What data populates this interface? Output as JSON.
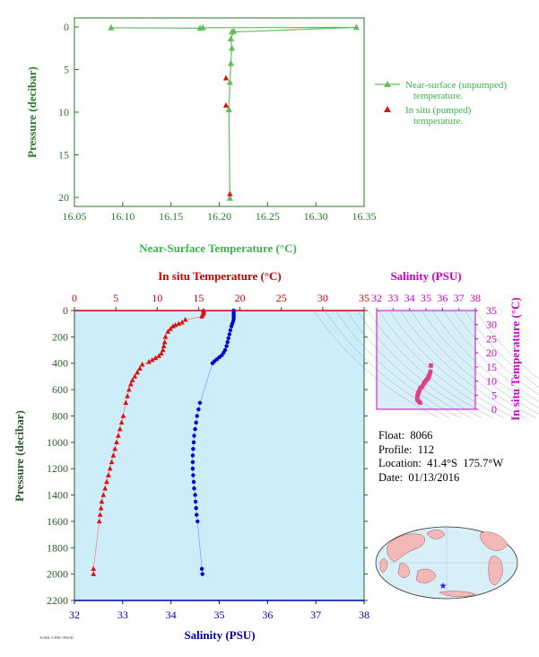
{
  "chart_data": [
    {
      "type": "line",
      "xlabel": "Near-Surface Temperature (°C)",
      "ylabel": "Pressure (decibar)",
      "xlim": [
        16.05,
        16.35
      ],
      "ylim": [
        0,
        22
      ],
      "y_inverted": true,
      "xticks": [
        "16.05",
        "16.10",
        "16.15",
        "16.20",
        "16.25",
        "16.30",
        "16.35"
      ],
      "yticks": [
        "0",
        "5",
        "10",
        "15",
        "20"
      ],
      "colors": {
        "nearsurface": "#5fbf5f",
        "insitu": "#dd1111",
        "axis_text": "#2a7a2a",
        "legend_text": "#3cb44b"
      },
      "legend": "right",
      "series": [
        {
          "name": "Near-surface (unpumped) temperature.",
          "marker": "triangle",
          "line": true,
          "points": [
            [
              16.088,
              0.1
            ],
            [
              16.18,
              0.15
            ],
            [
              16.183,
              0.1
            ],
            [
              16.342,
              0.05
            ],
            [
              16.213,
              0.6
            ],
            [
              16.215,
              0.5
            ],
            [
              16.212,
              1.4
            ],
            [
              16.213,
              2.5
            ],
            [
              16.212,
              4.3
            ],
            [
              16.211,
              6.5
            ],
            [
              16.21,
              9.7
            ],
            [
              16.211,
              20.1
            ]
          ]
        },
        {
          "name": "In situ (pumped) temperature.",
          "marker": "triangle",
          "line": false,
          "points": [
            [
              16.207,
              6.0
            ],
            [
              16.207,
              9.2
            ],
            [
              16.211,
              19.6
            ]
          ]
        }
      ]
    },
    {
      "type": "scatter",
      "x2label": "In situ Temperature (°C)",
      "xlabel": "Salinity (PSU)",
      "ylabel": "Pressure (decibar)",
      "x2lim": [
        0,
        35
      ],
      "xlim": [
        32,
        38
      ],
      "ylim": [
        0,
        2200
      ],
      "y_inverted": true,
      "x2ticks": [
        "0",
        "5",
        "10",
        "15",
        "20",
        "25",
        "30",
        "35"
      ],
      "xticks": [
        "32",
        "33",
        "34",
        "35",
        "36",
        "37",
        "38"
      ],
      "yticks": [
        "0",
        "200",
        "400",
        "600",
        "800",
        "1000",
        "1200",
        "1400",
        "1600",
        "1800",
        "2000",
        "2200"
      ],
      "colors": {
        "temperature": "#dd1111",
        "salinity": "#0000cc",
        "background": "#cdeef8"
      },
      "series": [
        {
          "name": "In situ Temperature (°C)",
          "axis": "top",
          "marker": "triangle",
          "points": [
            [
              15.6,
              0
            ],
            [
              15.6,
              10
            ],
            [
              15.6,
              20
            ],
            [
              15.5,
              30
            ],
            [
              15.4,
              45
            ],
            [
              13.4,
              70
            ],
            [
              13.0,
              90
            ],
            [
              12.6,
              100
            ],
            [
              12.2,
              110
            ],
            [
              11.9,
              120
            ],
            [
              11.6,
              140
            ],
            [
              11.3,
              160
            ],
            [
              11.0,
              200
            ],
            [
              10.9,
              240
            ],
            [
              10.8,
              270
            ],
            [
              10.7,
              300
            ],
            [
              10.5,
              325
            ],
            [
              10.2,
              345
            ],
            [
              9.8,
              360
            ],
            [
              9.4,
              375
            ],
            [
              9.0,
              390
            ],
            [
              8.2,
              410
            ],
            [
              7.9,
              440
            ],
            [
              7.6,
              470
            ],
            [
              7.3,
              500
            ],
            [
              7.0,
              530
            ],
            [
              6.8,
              560
            ],
            [
              6.6,
              600
            ],
            [
              6.4,
              650
            ],
            [
              6.2,
              700
            ],
            [
              5.9,
              800
            ],
            [
              5.7,
              850
            ],
            [
              5.5,
              900
            ],
            [
              5.3,
              950
            ],
            [
              5.1,
              1000
            ],
            [
              4.9,
              1050
            ],
            [
              4.7,
              1100
            ],
            [
              4.5,
              1150
            ],
            [
              4.3,
              1200
            ],
            [
              4.1,
              1250
            ],
            [
              3.9,
              1300
            ],
            [
              3.7,
              1350
            ],
            [
              3.5,
              1400
            ],
            [
              3.3,
              1450
            ],
            [
              3.2,
              1500
            ],
            [
              3.1,
              1550
            ],
            [
              3.0,
              1600
            ],
            [
              2.3,
              1960
            ],
            [
              2.3,
              2000
            ]
          ]
        },
        {
          "name": "Salinity (PSU)",
          "axis": "bottom",
          "marker": "dot",
          "points": [
            [
              35.3,
              0
            ],
            [
              35.3,
              15
            ],
            [
              35.3,
              30
            ],
            [
              35.3,
              45
            ],
            [
              35.3,
              60
            ],
            [
              35.29,
              80
            ],
            [
              35.27,
              100
            ],
            [
              35.25,
              120
            ],
            [
              35.23,
              150
            ],
            [
              35.21,
              180
            ],
            [
              35.19,
              210
            ],
            [
              35.17,
              240
            ],
            [
              35.15,
              270
            ],
            [
              35.12,
              300
            ],
            [
              35.09,
              320
            ],
            [
              35.05,
              340
            ],
            [
              35.0,
              355
            ],
            [
              34.95,
              370
            ],
            [
              34.9,
              385
            ],
            [
              34.86,
              400
            ],
            [
              34.6,
              700
            ],
            [
              34.57,
              750
            ],
            [
              34.54,
              800
            ],
            [
              34.52,
              850
            ],
            [
              34.5,
              900
            ],
            [
              34.48,
              950
            ],
            [
              34.47,
              1000
            ],
            [
              34.46,
              1050
            ],
            [
              34.45,
              1100
            ],
            [
              34.45,
              1150
            ],
            [
              34.45,
              1200
            ],
            [
              34.46,
              1250
            ],
            [
              34.47,
              1300
            ],
            [
              34.48,
              1350
            ],
            [
              34.5,
              1400
            ],
            [
              34.51,
              1450
            ],
            [
              34.52,
              1500
            ],
            [
              34.53,
              1550
            ],
            [
              34.55,
              1600
            ],
            [
              34.64,
              1960
            ],
            [
              34.65,
              2000
            ]
          ]
        }
      ]
    },
    {
      "type": "scatter",
      "x2label": "Salinity (PSU)",
      "y2label": "In situ Temperature (°C)",
      "x2lim": [
        32,
        38
      ],
      "y2lim": [
        0,
        35
      ],
      "x2ticks": [
        "32",
        "33",
        "34",
        "35",
        "36",
        "37",
        "38"
      ],
      "y2ticks": [
        "0",
        "5",
        "10",
        "15",
        "20",
        "25",
        "30",
        "35"
      ],
      "colors": {
        "points": "#e0408a",
        "axis": "#cc00cc",
        "contours": "#8899aa"
      },
      "series": [
        {
          "marker": "square",
          "points": [
            [
              35.3,
              15.6
            ],
            [
              35.3,
              15.5
            ],
            [
              35.29,
              15.4
            ],
            [
              35.27,
              13.4
            ],
            [
              35.25,
              13.0
            ],
            [
              35.23,
              12.6
            ],
            [
              35.21,
              12.2
            ],
            [
              35.19,
              11.9
            ],
            [
              35.17,
              11.6
            ],
            [
              35.15,
              11.3
            ],
            [
              35.12,
              11.0
            ],
            [
              35.09,
              10.8
            ],
            [
              35.05,
              10.5
            ],
            [
              35.0,
              10.2
            ],
            [
              34.95,
              9.8
            ],
            [
              34.9,
              9.4
            ],
            [
              34.86,
              9.0
            ],
            [
              34.8,
              8.2
            ],
            [
              34.74,
              7.9
            ],
            [
              34.68,
              7.6
            ],
            [
              34.63,
              7.3
            ],
            [
              34.6,
              6.6
            ],
            [
              34.57,
              6.2
            ],
            [
              34.54,
              5.9
            ],
            [
              34.52,
              5.5
            ],
            [
              34.5,
              5.1
            ],
            [
              34.48,
              4.9
            ],
            [
              34.47,
              4.5
            ],
            [
              34.46,
              4.1
            ],
            [
              34.46,
              3.7
            ],
            [
              34.47,
              3.5
            ],
            [
              34.5,
              3.2
            ],
            [
              34.53,
              3.0
            ],
            [
              34.6,
              2.5
            ],
            [
              34.65,
              2.3
            ]
          ]
        }
      ]
    }
  ],
  "float_info": {
    "float": "Float:  8066",
    "profile": "Profile:  112",
    "location": "Location:  41.4°S  175.7°W",
    "date": "Date:  01/13/2016"
  },
  "map": {
    "label": "float location map",
    "marker": "★",
    "ocean_color": "#d8eff8",
    "land_color": "#f4b8b8"
  },
  "stamp": "AOML/CPHC/PHOD"
}
